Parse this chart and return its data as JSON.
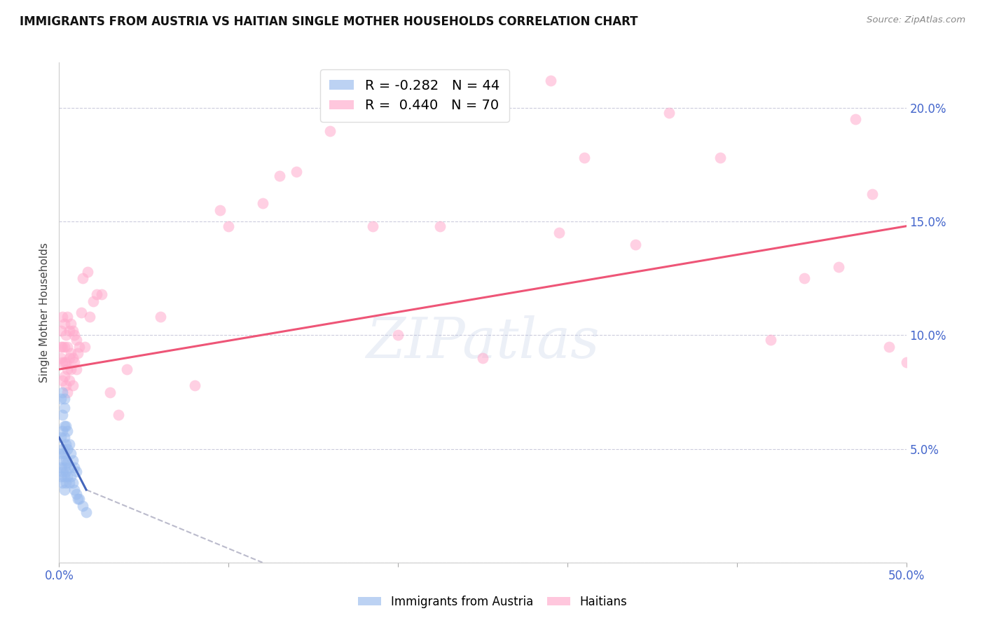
{
  "title": "IMMIGRANTS FROM AUSTRIA VS HAITIAN SINGLE MOTHER HOUSEHOLDS CORRELATION CHART",
  "source": "Source: ZipAtlas.com",
  "ylabel": "Single Mother Households",
  "xlim": [
    0.0,
    0.5
  ],
  "ylim": [
    0.0,
    0.22
  ],
  "xticks": [
    0.0,
    0.1,
    0.2,
    0.3,
    0.4,
    0.5
  ],
  "xtick_labels_bottom": [
    "0.0%",
    "",
    "",
    "",
    "",
    "50.0%"
  ],
  "yticks": [
    0.0,
    0.05,
    0.1,
    0.15,
    0.2
  ],
  "ytick_labels": [
    "",
    "5.0%",
    "10.0%",
    "15.0%",
    "20.0%"
  ],
  "blue_color": "#99BBEE",
  "pink_color": "#FFAACC",
  "blue_line_color": "#4466BB",
  "pink_line_color": "#EE5577",
  "dashed_line_color": "#BBBBCC",
  "legend_blue_r": "-0.282",
  "legend_blue_n": "44",
  "legend_pink_r": "0.440",
  "legend_pink_n": "70",
  "blue_x": [
    0.001,
    0.001,
    0.001,
    0.001,
    0.001,
    0.002,
    0.002,
    0.002,
    0.002,
    0.002,
    0.002,
    0.002,
    0.003,
    0.003,
    0.003,
    0.003,
    0.003,
    0.003,
    0.003,
    0.003,
    0.004,
    0.004,
    0.004,
    0.004,
    0.004,
    0.005,
    0.005,
    0.005,
    0.005,
    0.006,
    0.006,
    0.006,
    0.007,
    0.007,
    0.008,
    0.008,
    0.009,
    0.009,
    0.01,
    0.01,
    0.011,
    0.012,
    0.014,
    0.016
  ],
  "blue_y": [
    0.038,
    0.042,
    0.048,
    0.055,
    0.072,
    0.035,
    0.04,
    0.045,
    0.05,
    0.058,
    0.065,
    0.075,
    0.032,
    0.038,
    0.042,
    0.048,
    0.055,
    0.06,
    0.068,
    0.072,
    0.035,
    0.04,
    0.045,
    0.052,
    0.06,
    0.038,
    0.044,
    0.05,
    0.058,
    0.035,
    0.042,
    0.052,
    0.038,
    0.048,
    0.035,
    0.045,
    0.032,
    0.042,
    0.03,
    0.04,
    0.028,
    0.028,
    0.025,
    0.022
  ],
  "pink_x": [
    0.001,
    0.001,
    0.001,
    0.002,
    0.002,
    0.002,
    0.002,
    0.003,
    0.003,
    0.003,
    0.003,
    0.004,
    0.004,
    0.004,
    0.005,
    0.005,
    0.005,
    0.005,
    0.006,
    0.006,
    0.006,
    0.007,
    0.007,
    0.007,
    0.008,
    0.008,
    0.008,
    0.009,
    0.009,
    0.01,
    0.01,
    0.011,
    0.012,
    0.013,
    0.014,
    0.015,
    0.017,
    0.018,
    0.02,
    0.022,
    0.025,
    0.03,
    0.035,
    0.04,
    0.06,
    0.08,
    0.1,
    0.12,
    0.14,
    0.16,
    0.185,
    0.2,
    0.225,
    0.25,
    0.29,
    0.31,
    0.34,
    0.36,
    0.39,
    0.42,
    0.44,
    0.46,
    0.47,
    0.48,
    0.49,
    0.5,
    0.295,
    0.185,
    0.13,
    0.095
  ],
  "pink_y": [
    0.09,
    0.095,
    0.102,
    0.08,
    0.088,
    0.095,
    0.108,
    0.082,
    0.088,
    0.095,
    0.105,
    0.078,
    0.088,
    0.1,
    0.075,
    0.085,
    0.095,
    0.108,
    0.08,
    0.09,
    0.102,
    0.085,
    0.092,
    0.105,
    0.078,
    0.09,
    0.102,
    0.088,
    0.1,
    0.085,
    0.098,
    0.092,
    0.095,
    0.11,
    0.125,
    0.095,
    0.128,
    0.108,
    0.115,
    0.118,
    0.118,
    0.075,
    0.065,
    0.085,
    0.108,
    0.078,
    0.148,
    0.158,
    0.172,
    0.19,
    0.148,
    0.1,
    0.148,
    0.09,
    0.212,
    0.178,
    0.14,
    0.198,
    0.178,
    0.098,
    0.125,
    0.13,
    0.195,
    0.162,
    0.095,
    0.088,
    0.145,
    0.205,
    0.17,
    0.155
  ],
  "pink_trend_x0": 0.0,
  "pink_trend_x1": 0.5,
  "pink_trend_y0": 0.085,
  "pink_trend_y1": 0.148,
  "blue_trend_solid_x0": 0.0,
  "blue_trend_solid_x1": 0.016,
  "blue_trend_y0": 0.055,
  "blue_trend_y1": 0.032,
  "blue_trend_dash_x1": 0.12,
  "blue_trend_dash_y1": 0.0
}
